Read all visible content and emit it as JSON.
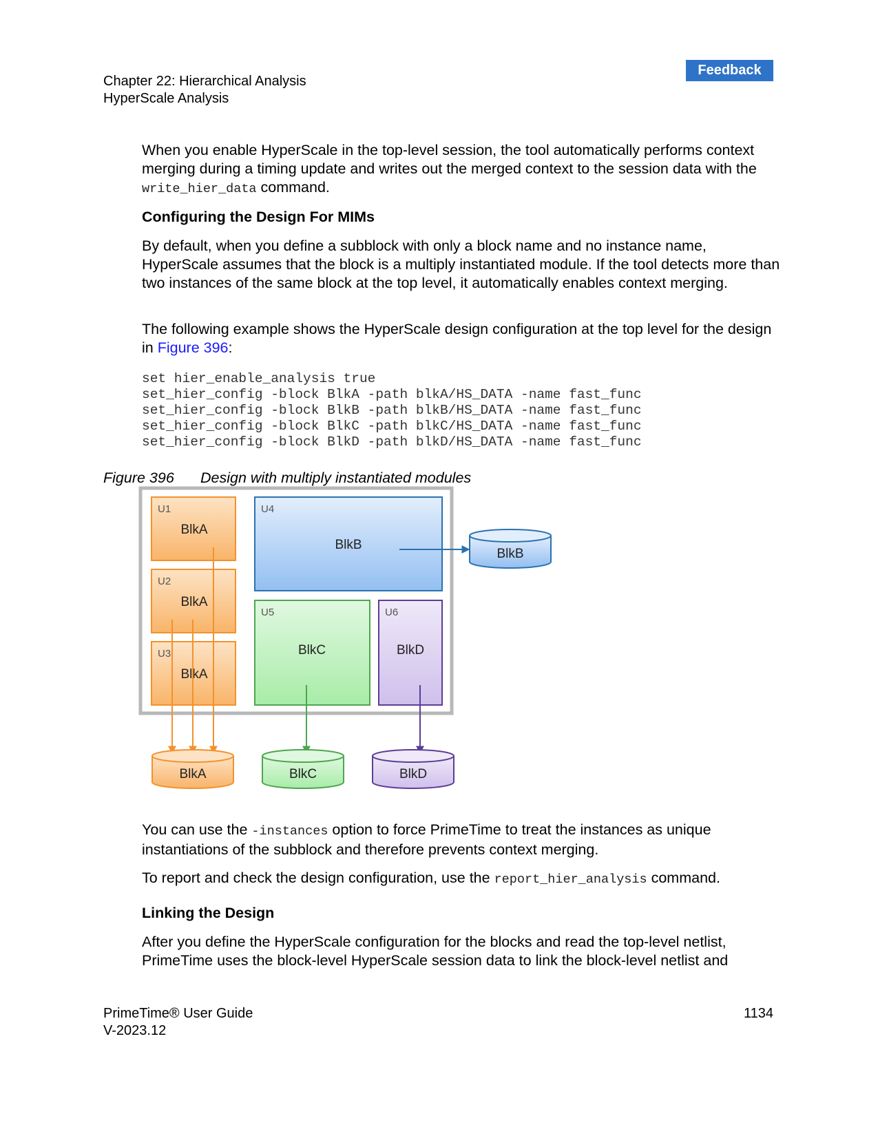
{
  "feedback_label": "Feedback",
  "header": {
    "chapter": "Chapter 22: Hierarchical Analysis",
    "section": "HyperScale Analysis"
  },
  "para1": {
    "before": "When you enable HyperScale in the top-level session, the tool automatically performs context merging during a timing update and writes out the merged context to the session data with the ",
    "code": "write_hier_data",
    "after": " command."
  },
  "heading1": "Configuring the Design For MIMs",
  "para2": "By default, when you define a subblock with only a block name and no instance name, HyperScale assumes that the block is a multiply instantiated module. If the tool detects more than two instances of the same block at the top level, it automatically enables context merging.",
  "para3": {
    "before": "The following example shows the HyperScale design configuration at the top level for the design in ",
    "link": "Figure 396",
    "after": ":"
  },
  "code_lines": [
    "set hier_enable_analysis true",
    "set_hier_config -block BlkA -path blkA/HS_DATA -name fast_func",
    "set_hier_config -block BlkB -path blkB/HS_DATA -name fast_func",
    "set_hier_config -block BlkC -path blkC/HS_DATA -name fast_func",
    "set_hier_config -block BlkD -path blkD/HS_DATA -name fast_func"
  ],
  "figure": {
    "number": "Figure 396",
    "caption": "Design with multiply instantiated modules",
    "instances": [
      {
        "id": "U1",
        "block": "BlkA"
      },
      {
        "id": "U2",
        "block": "BlkA"
      },
      {
        "id": "U3",
        "block": "BlkA"
      },
      {
        "id": "U4",
        "block": "BlkB"
      },
      {
        "id": "U5",
        "block": "BlkC"
      },
      {
        "id": "U6",
        "block": "BlkD"
      }
    ],
    "databases": [
      "BlkA",
      "BlkB",
      "BlkC",
      "BlkD"
    ],
    "colors": {
      "blkA": "#f7a040",
      "blkB": "#3b82c4",
      "blkC": "#5cb85c",
      "blkD": "#6b4aa0"
    }
  },
  "para4": {
    "before": "You can use the ",
    "code": "-instances",
    "after": " option to force PrimeTime to treat the instances as unique instantiations of the subblock and therefore prevents context merging."
  },
  "para5": {
    "before": "To report and check the design configuration, use the ",
    "code": "report_hier_analysis",
    "after": " command."
  },
  "heading2": "Linking the Design",
  "para6": "After you define the HyperScale configuration for the blocks and read the top-level netlist, PrimeTime uses the block-level HyperScale session data to link the block-level netlist and",
  "footer": {
    "title": "PrimeTime® User Guide",
    "version": "V-2023.12",
    "page": "1134"
  }
}
